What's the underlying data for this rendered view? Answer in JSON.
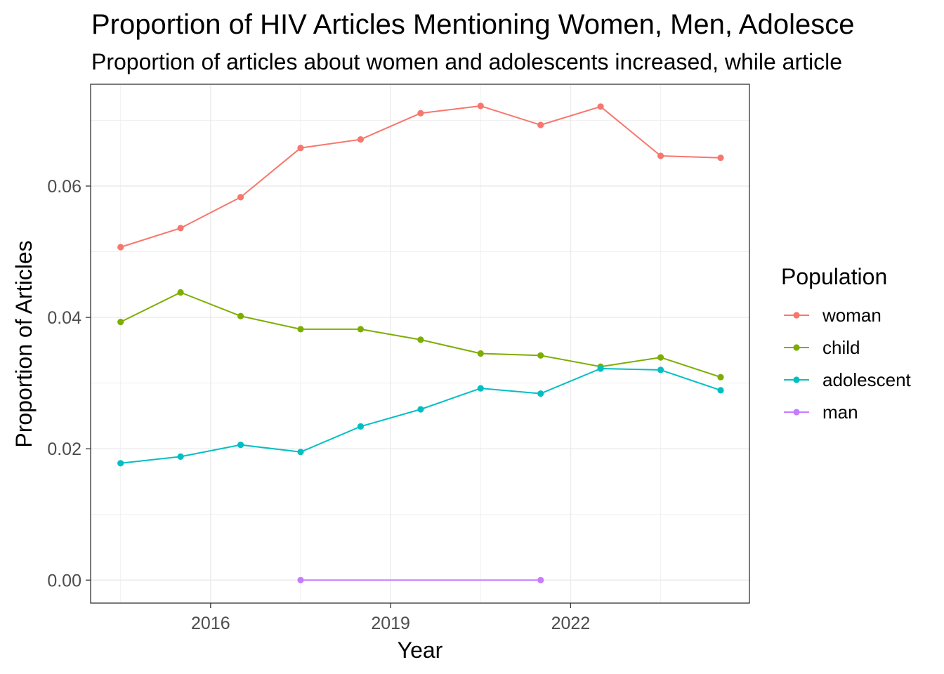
{
  "chart_data": {
    "type": "line",
    "title": "Proportion of HIV Articles Mentioning Women, Men, Adolesce",
    "subtitle": "Proportion of articles about women and adolescents increased, while article",
    "xlabel": "Year",
    "ylabel": "Proportion of Articles",
    "x": [
      2014.5,
      2015.5,
      2016.5,
      2017.5,
      2018.5,
      2019.5,
      2020.5,
      2021.5,
      2022.5,
      2023.5,
      2024.5
    ],
    "xlim": [
      2014,
      2024.98
    ],
    "ylim": [
      -0.0035,
      0.0755
    ],
    "xticks": [
      2016,
      2019,
      2022
    ],
    "xtick_labels": [
      "2016",
      "2019",
      "2022"
    ],
    "yticks": [
      0.0,
      0.02,
      0.04,
      0.06
    ],
    "ytick_labels": [
      "0.00",
      "0.02",
      "0.04",
      "0.06"
    ],
    "grid": true,
    "legend_title": "Population",
    "legend_position": "right",
    "series": [
      {
        "name": "woman",
        "color": "#F8766D",
        "values": [
          0.0507,
          0.0536,
          0.0583,
          0.0658,
          0.0671,
          0.0711,
          0.0722,
          0.0693,
          0.0721,
          0.0646,
          0.0643
        ]
      },
      {
        "name": "child",
        "color": "#7CAE00",
        "values": [
          0.0393,
          0.0438,
          0.0402,
          0.0382,
          0.0382,
          0.0366,
          0.0345,
          0.0342,
          0.0325,
          0.0339,
          0.0309
        ]
      },
      {
        "name": "adolescent",
        "color": "#00BFC4",
        "values": [
          0.0178,
          0.0188,
          0.0206,
          0.0195,
          0.0234,
          0.026,
          0.0292,
          0.0284,
          0.0322,
          0.032,
          0.0289
        ]
      },
      {
        "name": "man",
        "color": "#C77CFF",
        "values": [
          null,
          null,
          null,
          0.0,
          null,
          null,
          null,
          0.0,
          null,
          null,
          null
        ]
      }
    ]
  }
}
